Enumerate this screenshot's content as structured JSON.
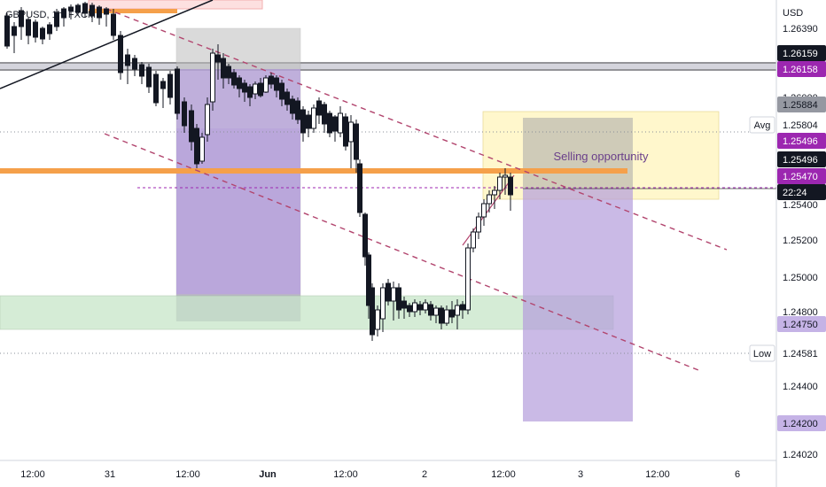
{
  "chart_data": {
    "type": "candlestick",
    "symbol": "GBPUSD, 1h, FXCM",
    "currency": "USD",
    "y_ticks": [
      "1.26390",
      "1.26000",
      "1.25804",
      "1.25400",
      "1.25200",
      "1.25000",
      "1.24800",
      "1.24400",
      "1.24020"
    ],
    "x_ticks": [
      "12:00",
      "31",
      "12:00",
      "Jun",
      "12:00",
      "2",
      "12:00",
      "3",
      "12:00",
      "6"
    ],
    "price_labels": [
      {
        "label": "",
        "value": "1.26159",
        "style": "dark"
      },
      {
        "label": "",
        "value": "1.26158",
        "style": "purple"
      },
      {
        "label": "",
        "value": "1.25884",
        "style": "grey"
      },
      {
        "label": "Avg",
        "value": "1.25804",
        "style": "plain"
      },
      {
        "label": "",
        "value": "1.25496",
        "style": "purple"
      },
      {
        "label": "",
        "value": "1.25496",
        "style": "dark"
      },
      {
        "label": "",
        "value": "1.25470",
        "style": "purple"
      },
      {
        "label": "",
        "value": "22:24",
        "style": "dark"
      },
      {
        "label": "",
        "value": "1.24750",
        "style": "lavender"
      },
      {
        "label": "Low",
        "value": "1.24581",
        "style": "plain"
      },
      {
        "label": "",
        "value": "1.24200",
        "style": "lavender"
      }
    ],
    "annotation": "Selling opportunity",
    "colors": {
      "candle_up": "#ffffff",
      "candle_down": "#131722",
      "orange_line": "#f5a04a",
      "purple_zone": "#b39ddb",
      "green_zone": "#c8e6c9",
      "yellow_box": "#fff6c4",
      "trend_dash": "#b2456e"
    }
  }
}
